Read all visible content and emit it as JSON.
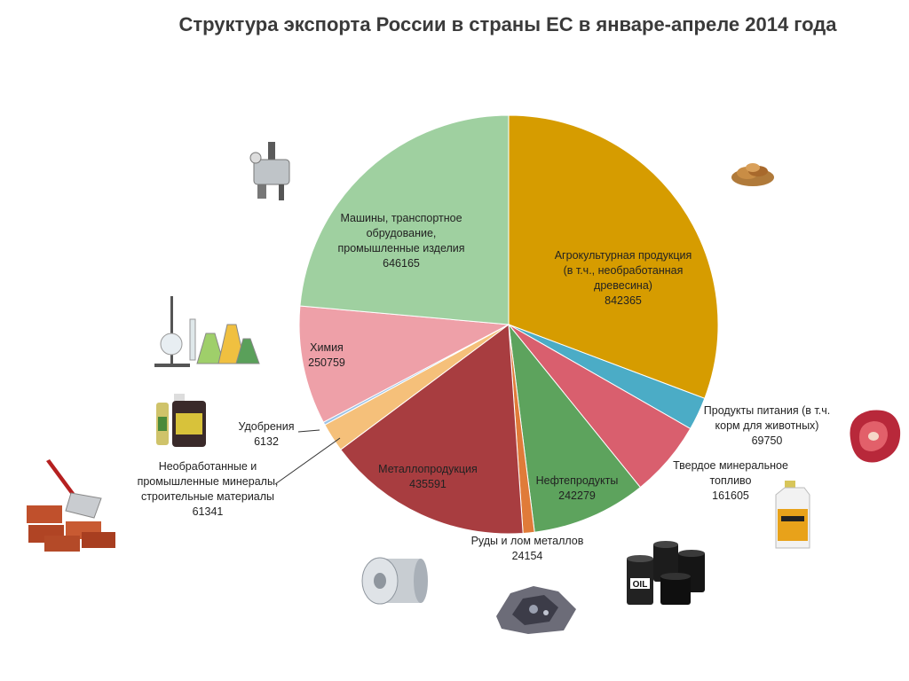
{
  "chart_data": {
    "type": "pie",
    "title": "Структура экспорта России в страны ЕС в январе-апреле 2014 года",
    "slices": [
      {
        "lines": [
          "Агрокультурная продукция",
          "(в т.ч., необработанная",
          "древесина)"
        ],
        "value": 842365,
        "value_label": "842365",
        "color": "#D69C00"
      },
      {
        "lines": [
          "Продукты питания (в т.ч.",
          "корм для животных)"
        ],
        "value": 69750,
        "value_label": "69750",
        "color": "#4BACC6"
      },
      {
        "lines": [
          "Твердое минеральное",
          "топливо"
        ],
        "value": 161605,
        "value_label": "161605",
        "color": "#D95F6E"
      },
      {
        "lines": [
          "Нефтепродукты"
        ],
        "value": 242279,
        "value_label": "242279",
        "color": "#5DA35D"
      },
      {
        "lines": [
          "Руды и лом металлов"
        ],
        "value": 24154,
        "value_label": "24154",
        "color": "#E07B39"
      },
      {
        "lines": [
          "Металлопродукция"
        ],
        "value": 435591,
        "value_label": "435591",
        "color": "#A83D40"
      },
      {
        "lines": [
          "Необработанные и",
          "промышленные минералы,",
          "строительные материалы"
        ],
        "value": 61341,
        "value_label": "61341",
        "color": "#F5C07A"
      },
      {
        "lines": [
          "Удобрения"
        ],
        "value": 6132,
        "value_label": "6132",
        "color": "#9DC3E6"
      },
      {
        "lines": [
          "Химия"
        ],
        "value": 250759,
        "value_label": "250759",
        "color": "#EEA0A8"
      },
      {
        "lines": [
          "Машины, транспортное",
          "обрудование,",
          "промышленные изделия"
        ],
        "value": 646165,
        "value_label": "646165",
        "color": "#9FD0A0"
      }
    ]
  },
  "icons": {
    "agro": "wood-chips-icon",
    "food": "meat-icon",
    "fuel": "motor-oil-bottle-icon",
    "oil": "oil-barrels-icon",
    "ore": "ore-rock-icon",
    "metal": "steel-coil-icon",
    "minerals": "bricks-trowel-icon",
    "fertilizers": "fertilizer-bottles-icon",
    "chemistry": "lab-glassware-icon",
    "machines": "sewing-machine-icon",
    "oil_text": "OIL"
  }
}
